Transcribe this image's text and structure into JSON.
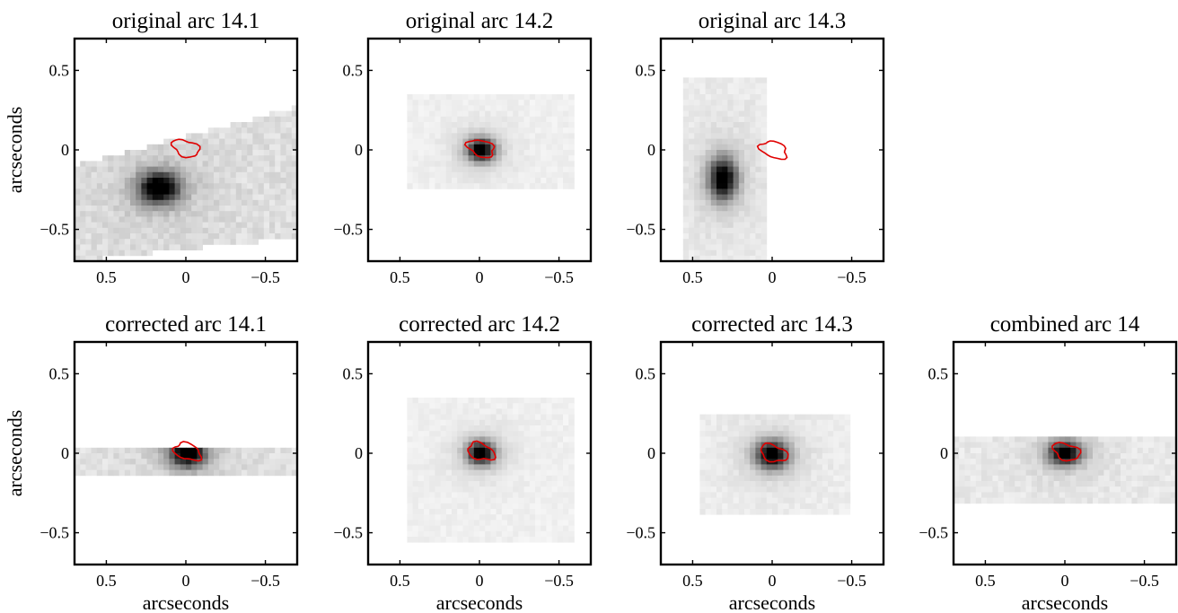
{
  "chart_data": [
    {
      "type": "heatmap",
      "title": "original arc 14.1",
      "xlabel": "",
      "ylabel": "arcseconds",
      "xlim": [
        0.7,
        -0.7
      ],
      "ylim": [
        -0.7,
        0.7
      ],
      "xticks": [
        0.5,
        0,
        -0.5
      ],
      "yticks": [
        0.5,
        0,
        -0.5
      ],
      "xtick_labels": [
        "0.5",
        "0",
        "−0.5"
      ],
      "ytick_labels": [
        "0.5",
        "0",
        "−0.5"
      ],
      "peak": {
        "x": 0.17,
        "y": -0.24
      },
      "peak_spread": [
        0.09,
        0.07
      ],
      "coverage": {
        "left": 0.7,
        "right": -0.7,
        "top_left": -0.1,
        "top_right": 0.27,
        "bottom_left": -0.7,
        "bottom_right": -0.55
      },
      "background_level": 0.13,
      "contour_center": {
        "x": 0.0,
        "y": 0.01
      }
    },
    {
      "type": "heatmap",
      "title": "original arc 14.2",
      "xlabel": "",
      "ylabel": "",
      "xlim": [
        0.7,
        -0.7
      ],
      "ylim": [
        -0.7,
        0.7
      ],
      "xticks": [
        0.5,
        0,
        -0.5
      ],
      "yticks": [
        0.5,
        0,
        -0.5
      ],
      "xtick_labels": [
        "0.5",
        "0",
        "−0.5"
      ],
      "ytick_labels": [
        "0.5",
        "0",
        "−0.5"
      ],
      "peak": {
        "x": -0.01,
        "y": 0.0
      },
      "peak_spread": [
        0.06,
        0.05
      ],
      "coverage": {
        "left": 0.45,
        "right": -0.6,
        "top_left": 0.35,
        "top_right": 0.35,
        "bottom_left": -0.25,
        "bottom_right": -0.25
      },
      "background_level": 0.06,
      "contour_center": {
        "x": -0.01,
        "y": 0.01
      }
    },
    {
      "type": "heatmap",
      "title": "original arc 14.3",
      "xlabel": "",
      "ylabel": "",
      "xlim": [
        0.7,
        -0.7
      ],
      "ylim": [
        -0.7,
        0.7
      ],
      "xticks": [
        0.5,
        0,
        -0.5
      ],
      "yticks": [
        0.5,
        0,
        -0.5
      ],
      "xtick_labels": [
        "0.5",
        "0",
        "−0.5"
      ],
      "ytick_labels": [
        "0.5",
        "0",
        "−0.5"
      ],
      "peak": {
        "x": 0.31,
        "y": -0.18
      },
      "peak_spread": [
        0.06,
        0.09
      ],
      "coverage": {
        "left": 0.55,
        "right": 0.05,
        "top_left": 0.45,
        "top_right": 0.45,
        "bottom_left": -0.7,
        "bottom_right": -0.7
      },
      "background_level": 0.08,
      "contour_center": {
        "x": -0.01,
        "y": 0.0
      }
    },
    {
      "type": "heatmap",
      "title": "corrected arc 14.1",
      "xlabel": "",
      "ylabel": "arcseconds",
      "xlim": [
        0.7,
        -0.7
      ],
      "ylim": [
        -0.7,
        0.7
      ],
      "xticks": [
        0.5,
        0,
        -0.5
      ],
      "yticks": [
        0.5,
        0,
        -0.5
      ],
      "xtick_labels": [
        "0.5",
        "0",
        "−0.5"
      ],
      "ytick_labels": [
        "0.5",
        "0",
        "−0.5"
      ],
      "peak": {
        "x": -0.01,
        "y": 0.0
      },
      "peak_spread": [
        0.08,
        0.06
      ],
      "coverage": {
        "left": 0.7,
        "right": -0.7,
        "top_left": 0.05,
        "top_right": 0.05,
        "bottom_left": -0.15,
        "bottom_right": -0.15
      },
      "background_level": 0.12,
      "contour_center": {
        "x": -0.01,
        "y": 0.01
      }
    },
    {
      "type": "heatmap",
      "title": "corrected arc 14.2",
      "xlabel": "",
      "ylabel": "",
      "xlim": [
        0.7,
        -0.7
      ],
      "ylim": [
        -0.7,
        0.7
      ],
      "xticks": [
        0.5,
        0,
        -0.5
      ],
      "yticks": [
        0.5,
        0,
        -0.5
      ],
      "xtick_labels": [
        "0.5",
        "0",
        "−0.5"
      ],
      "ytick_labels": [
        "0.5",
        "0",
        "−0.5"
      ],
      "peak": {
        "x": -0.01,
        "y": 0.0
      },
      "peak_spread": [
        0.06,
        0.05
      ],
      "coverage": {
        "left": 0.45,
        "right": -0.6,
        "top_left": 0.35,
        "top_right": 0.35,
        "bottom_left": -0.55,
        "bottom_right": -0.55
      },
      "background_level": 0.06,
      "contour_center": {
        "x": -0.01,
        "y": 0.01
      }
    },
    {
      "type": "heatmap",
      "title": "corrected arc 14.3",
      "xlabel": "",
      "ylabel": "",
      "xlim": [
        0.7,
        -0.7
      ],
      "ylim": [
        -0.7,
        0.7
      ],
      "xticks": [
        0.5,
        0,
        -0.5
      ],
      "yticks": [
        0.5,
        0,
        -0.5
      ],
      "xtick_labels": [
        "0.5",
        "0",
        "−0.5"
      ],
      "ytick_labels": [
        "0.5",
        "0",
        "−0.5"
      ],
      "peak": {
        "x": 0.0,
        "y": -0.01
      },
      "peak_spread": [
        0.07,
        0.06
      ],
      "coverage": {
        "left": 0.45,
        "right": -0.5,
        "top_left": 0.25,
        "top_right": 0.25,
        "bottom_left": -0.4,
        "bottom_right": -0.4
      },
      "background_level": 0.07,
      "contour_center": {
        "x": -0.01,
        "y": 0.0
      }
    },
    {
      "type": "heatmap",
      "title": "combined arc 14",
      "xlabel": "",
      "ylabel": "",
      "xlim": [
        0.7,
        -0.7
      ],
      "ylim": [
        -0.7,
        0.7
      ],
      "xticks": [
        0.5,
        0,
        -0.5
      ],
      "yticks": [
        0.5,
        0,
        -0.5
      ],
      "xtick_labels": [
        "0.5",
        "0",
        "−0.5"
      ],
      "ytick_labels": [
        "0.5",
        "0",
        "−0.5"
      ],
      "peak": {
        "x": 0.0,
        "y": 0.0
      },
      "peak_spread": [
        0.07,
        0.05
      ],
      "coverage": {
        "left": 0.7,
        "right": -0.7,
        "top_left": 0.1,
        "top_right": 0.1,
        "bottom_left": -0.3,
        "bottom_right": -0.3
      },
      "background_level": 0.09,
      "contour_center": {
        "x": -0.01,
        "y": 0.01
      }
    }
  ],
  "xlabel_text": "arcseconds",
  "colors": {
    "contour": "#e00000",
    "frame": "#000000",
    "background": "#ffffff"
  },
  "colormap": "gray_r"
}
